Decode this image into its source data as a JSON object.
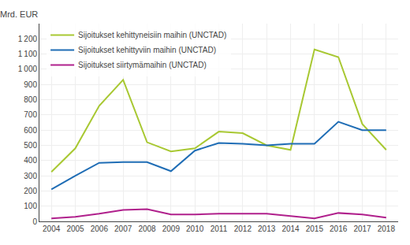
{
  "chart_data": {
    "type": "line",
    "ylabel": "Mrd. EUR",
    "x": [
      2004,
      2005,
      2006,
      2007,
      2008,
      2009,
      2010,
      2011,
      2012,
      2013,
      2014,
      2015,
      2016,
      2017,
      2018
    ],
    "series": [
      {
        "name": "Sijoitukset kehittyneisiin maihin (UNCTAD)",
        "color": "#a8c832",
        "values": [
          325,
          480,
          760,
          930,
          520,
          460,
          480,
          590,
          580,
          500,
          470,
          1130,
          1080,
          640,
          470
        ]
      },
      {
        "name": "Sijoitukset kehittyviin maihin (UNCTAD)",
        "color": "#1f6db5",
        "values": [
          210,
          300,
          385,
          390,
          390,
          330,
          465,
          515,
          510,
          500,
          510,
          510,
          655,
          600,
          600
        ]
      },
      {
        "name": "Sijoitukset siirtymämaihin (UNCTAD)",
        "color": "#b0208c",
        "values": [
          20,
          30,
          50,
          75,
          80,
          45,
          45,
          50,
          50,
          50,
          35,
          20,
          55,
          45,
          25
        ]
      }
    ],
    "xlim": [
      2003.5,
      2018.5
    ],
    "xticks": [
      2004,
      2005,
      2006,
      2007,
      2008,
      2009,
      2010,
      2011,
      2012,
      2013,
      2014,
      2015,
      2016,
      2017,
      2018
    ],
    "ylim": [
      0,
      1300
    ],
    "yticks": [
      0,
      100,
      200,
      300,
      400,
      500,
      600,
      700,
      800,
      900,
      {
        "value": 1000,
        "label": "1 000"
      },
      {
        "value": 1100,
        "label": "1 100"
      },
      {
        "value": 1200,
        "label": "1 200"
      }
    ],
    "grid": true,
    "legend": "upper left"
  }
}
